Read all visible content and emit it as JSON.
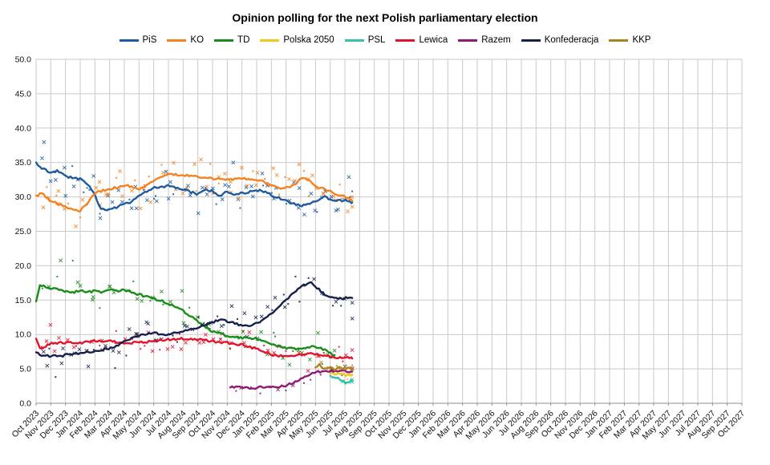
{
  "chart_data": {
    "type": "scatter",
    "title": "Opinion polling for the next Polish parliamentary election",
    "legend_position": "top",
    "grid": true,
    "y_axis": {
      "min": 0,
      "max": 50,
      "step": 5,
      "tick_format_decimals": 1
    },
    "x_axis": {
      "tick_rotation": -45,
      "labels": [
        "Oct 2023",
        "Nov 2023",
        "Dec 2023",
        "Jan 2024",
        "Feb 2024",
        "Mar 2024",
        "Apr 2024",
        "May 2024",
        "Jun 2024",
        "Jul 2024",
        "Aug 2024",
        "Sep 2024",
        "Oct 2024",
        "Nov 2024",
        "Dec 2024",
        "Jan 2025",
        "Feb 2025",
        "Mar 2025",
        "Apr 2025",
        "May 2025",
        "Jun 2025",
        "Jul 2025",
        "Aug 2025",
        "Sep 2025",
        "Oct 2025",
        "Nov 2025",
        "Dec 2025",
        "Jan 2026",
        "Feb 2026",
        "Mar 2026",
        "Apr 2026",
        "May 2026",
        "Jun 2026",
        "Jul 2026",
        "Aug 2026",
        "Sep 2026",
        "Oct 2026",
        "Nov 2026",
        "Dec 2026",
        "Jan 2027",
        "Feb 2027",
        "Mar 2027",
        "Apr 2027",
        "May 2027",
        "Jun 2027",
        "Jul 2027",
        "Aug 2027",
        "Sep 2027",
        "Oct 2027"
      ]
    },
    "x_unit": "months since Oct 2023 (fractional = within-month position)",
    "series": [
      {
        "name": "PiS",
        "color": "#1e5c9f",
        "scatter_density": 3.5,
        "scatter_jitter": 2.2,
        "trend": [
          [
            0,
            35.0
          ],
          [
            0.3,
            34.2
          ],
          [
            1,
            33.6
          ],
          [
            1.5,
            33.8
          ],
          [
            2,
            33.0
          ],
          [
            3,
            32.6
          ],
          [
            3.6,
            31.6
          ],
          [
            4,
            30.2
          ],
          [
            4.4,
            28.3
          ],
          [
            5,
            28.1
          ],
          [
            5.6,
            28.6
          ],
          [
            6,
            29.0
          ],
          [
            6.5,
            29.3
          ],
          [
            7,
            30.2
          ],
          [
            7.5,
            30.8
          ],
          [
            8,
            31.3
          ],
          [
            9,
            31.6
          ],
          [
            9.5,
            31.4
          ],
          [
            10,
            31.1
          ],
          [
            10.5,
            30.7
          ],
          [
            11,
            30.4
          ],
          [
            11.5,
            31.0
          ],
          [
            12,
            30.9
          ],
          [
            12.4,
            30.0
          ],
          [
            13,
            30.8
          ],
          [
            13.5,
            30.3
          ],
          [
            14,
            30.5
          ],
          [
            15,
            31.0
          ],
          [
            15.5,
            30.8
          ],
          [
            16,
            30.3
          ],
          [
            17,
            29.4
          ],
          [
            18,
            28.7
          ],
          [
            18.5,
            28.9
          ],
          [
            19,
            29.3
          ],
          [
            19.6,
            30.0
          ],
          [
            20,
            29.7
          ],
          [
            20.5,
            29.4
          ],
          [
            21,
            29.5
          ],
          [
            21.5,
            29.2
          ]
        ]
      },
      {
        "name": "KO",
        "color": "#f58220",
        "scatter_density": 3.5,
        "scatter_jitter": 2.2,
        "trend": [
          [
            0,
            30.2
          ],
          [
            0.4,
            30.5
          ],
          [
            1,
            29.4
          ],
          [
            1.5,
            29.0
          ],
          [
            2,
            28.6
          ],
          [
            2.5,
            28.1
          ],
          [
            3,
            28.0
          ],
          [
            3.5,
            29.0
          ],
          [
            4,
            30.6
          ],
          [
            4.5,
            30.9
          ],
          [
            5,
            31.1
          ],
          [
            5.5,
            31.4
          ],
          [
            6,
            31.7
          ],
          [
            6.5,
            31.5
          ],
          [
            7,
            31.0
          ],
          [
            7.5,
            31.6
          ],
          [
            8,
            32.5
          ],
          [
            8.5,
            33.0
          ],
          [
            9,
            33.3
          ],
          [
            10,
            33.2
          ],
          [
            11,
            32.9
          ],
          [
            12,
            32.7
          ],
          [
            13,
            32.5
          ],
          [
            14,
            32.7
          ],
          [
            15,
            32.5
          ],
          [
            15.7,
            32.0
          ],
          [
            16,
            31.6
          ],
          [
            16.5,
            31.3
          ],
          [
            17,
            31.3
          ],
          [
            17.5,
            31.7
          ],
          [
            18,
            32.6
          ],
          [
            18.4,
            32.7
          ],
          [
            19,
            31.5
          ],
          [
            19.5,
            31.2
          ],
          [
            20,
            30.8
          ],
          [
            20.5,
            30.4
          ],
          [
            21,
            30.0
          ],
          [
            21.5,
            29.4
          ]
        ]
      },
      {
        "name": "TD",
        "color": "#1a8c1a",
        "scatter_density": 2.5,
        "scatter_jitter": 1.8,
        "trend": [
          [
            0,
            14.8
          ],
          [
            0.25,
            17.2
          ],
          [
            0.6,
            16.9
          ],
          [
            1,
            16.8
          ],
          [
            1.5,
            16.5
          ],
          [
            2,
            16.3
          ],
          [
            2.5,
            16.1
          ],
          [
            3,
            16.4
          ],
          [
            3.5,
            16.2
          ],
          [
            4,
            16.3
          ],
          [
            4.5,
            16.2
          ],
          [
            5,
            16.5
          ],
          [
            5.5,
            16.3
          ],
          [
            6,
            16.5
          ],
          [
            6.5,
            16.2
          ],
          [
            7,
            15.8
          ],
          [
            7.5,
            15.5
          ],
          [
            8,
            15.2
          ],
          [
            8.5,
            14.9
          ],
          [
            9,
            14.5
          ],
          [
            9.5,
            14.0
          ],
          [
            10,
            13.4
          ],
          [
            10.5,
            12.7
          ],
          [
            11,
            11.9
          ],
          [
            11.5,
            11.1
          ],
          [
            12,
            10.4
          ],
          [
            12.5,
            10.1
          ],
          [
            13,
            9.8
          ],
          [
            13.5,
            9.7
          ],
          [
            14,
            9.5
          ],
          [
            14.5,
            9.5
          ],
          [
            15,
            9.4
          ],
          [
            15.5,
            9.0
          ],
          [
            16,
            8.7
          ],
          [
            16.5,
            8.3
          ],
          [
            17,
            8.0
          ],
          [
            17.5,
            7.9
          ],
          [
            18,
            7.9
          ],
          [
            18.5,
            8.1
          ],
          [
            19,
            8.2
          ],
          [
            19.5,
            7.9
          ],
          [
            19.9,
            7.4
          ],
          [
            20.3,
            7.0
          ]
        ]
      },
      {
        "name": "Polska 2050",
        "color": "#f2c81e",
        "scatter_density": 3,
        "scatter_jitter": 0.8,
        "trend": [
          [
            20,
            4.4
          ],
          [
            20.4,
            4.2
          ],
          [
            20.8,
            4.4
          ],
          [
            21,
            4.1
          ],
          [
            21.3,
            4.0
          ],
          [
            21.5,
            4.1
          ]
        ]
      },
      {
        "name": "PSL",
        "color": "#35c2a5",
        "scatter_density": 3,
        "scatter_jitter": 0.8,
        "trend": [
          [
            20,
            4.0
          ],
          [
            20.4,
            3.7
          ],
          [
            20.8,
            3.3
          ],
          [
            21,
            3.0
          ],
          [
            21.2,
            2.9
          ],
          [
            21.4,
            3.3
          ],
          [
            21.5,
            3.2
          ]
        ]
      },
      {
        "name": "Lewica",
        "color": "#e3132d",
        "scatter_density": 2.8,
        "scatter_jitter": 1.4,
        "trend": [
          [
            0,
            9.4
          ],
          [
            0.3,
            7.9
          ],
          [
            0.7,
            8.3
          ],
          [
            1,
            8.7
          ],
          [
            2,
            8.8
          ],
          [
            3,
            8.8
          ],
          [
            4,
            9.0
          ],
          [
            5,
            9.0
          ],
          [
            6,
            8.8
          ],
          [
            7,
            8.8
          ],
          [
            8,
            9.0
          ],
          [
            9,
            9.3
          ],
          [
            10,
            9.4
          ],
          [
            11,
            9.3
          ],
          [
            12,
            9.0
          ],
          [
            13,
            8.8
          ],
          [
            14,
            8.5
          ],
          [
            15,
            7.9
          ],
          [
            16,
            7.1
          ],
          [
            16.5,
            6.9
          ],
          [
            17,
            6.8
          ],
          [
            17.5,
            7.0
          ],
          [
            18,
            7.0
          ],
          [
            18.5,
            7.2
          ],
          [
            19,
            7.1
          ],
          [
            19.5,
            6.9
          ],
          [
            20,
            6.8
          ],
          [
            20.5,
            6.6
          ],
          [
            21,
            6.7
          ],
          [
            21.5,
            6.5
          ]
        ]
      },
      {
        "name": "Razem",
        "color": "#8e1a76",
        "scatter_density": 1.8,
        "scatter_jitter": 0.7,
        "trend": [
          [
            13.2,
            2.3
          ],
          [
            14,
            2.3
          ],
          [
            14.5,
            2.2
          ],
          [
            15,
            2.2
          ],
          [
            15.5,
            2.4
          ],
          [
            16,
            2.3
          ],
          [
            16.5,
            2.4
          ],
          [
            17,
            2.6
          ],
          [
            17.5,
            3.0
          ],
          [
            18,
            3.6
          ],
          [
            18.5,
            4.1
          ],
          [
            19,
            4.5
          ],
          [
            19.5,
            4.6
          ],
          [
            20,
            4.7
          ],
          [
            20.5,
            4.6
          ],
          [
            21,
            4.7
          ],
          [
            21.5,
            4.6
          ]
        ]
      },
      {
        "name": "Konfederacja",
        "color": "#16204a",
        "scatter_density": 3,
        "scatter_jitter": 1.8,
        "trend": [
          [
            0,
            7.4
          ],
          [
            0.4,
            6.8
          ],
          [
            1,
            6.9
          ],
          [
            1.5,
            6.8
          ],
          [
            2,
            7.0
          ],
          [
            2.5,
            7.2
          ],
          [
            3,
            7.3
          ],
          [
            3.5,
            7.4
          ],
          [
            4,
            7.6
          ],
          [
            4.5,
            7.8
          ],
          [
            5,
            8.0
          ],
          [
            5.5,
            8.4
          ],
          [
            6,
            9.0
          ],
          [
            6.5,
            9.5
          ],
          [
            7,
            9.8
          ],
          [
            7.5,
            10.1
          ],
          [
            8,
            10.2
          ],
          [
            8.5,
            10.1
          ],
          [
            9,
            10.0
          ],
          [
            9.5,
            10.2
          ],
          [
            10,
            10.4
          ],
          [
            10.5,
            10.7
          ],
          [
            11,
            11.0
          ],
          [
            11.5,
            11.4
          ],
          [
            12,
            11.8
          ],
          [
            12.6,
            12.1
          ],
          [
            13,
            11.9
          ],
          [
            13.5,
            11.6
          ],
          [
            14,
            11.3
          ],
          [
            14.5,
            11.2
          ],
          [
            15,
            11.6
          ],
          [
            15.5,
            12.2
          ],
          [
            16,
            13.0
          ],
          [
            16.5,
            14.0
          ],
          [
            17,
            15.0
          ],
          [
            17.5,
            16.0
          ],
          [
            18,
            16.8
          ],
          [
            18.5,
            17.6
          ],
          [
            18.8,
            17.5
          ],
          [
            19,
            17.0
          ],
          [
            19.5,
            16.0
          ],
          [
            19.8,
            15.5
          ],
          [
            20,
            15.4
          ],
          [
            20.5,
            15.2
          ],
          [
            21,
            15.3
          ],
          [
            21.5,
            15.3
          ]
        ]
      },
      {
        "name": "KKP",
        "color": "#a9831d",
        "scatter_density": 3,
        "scatter_jitter": 0.9,
        "trend": [
          [
            19,
            5.2
          ],
          [
            19.3,
            5.6
          ],
          [
            19.6,
            4.9
          ],
          [
            20,
            5.4
          ],
          [
            20.3,
            4.8
          ],
          [
            20.7,
            5.3
          ],
          [
            21,
            4.8
          ],
          [
            21.2,
            5.1
          ],
          [
            21.5,
            5.0
          ]
        ]
      }
    ]
  }
}
